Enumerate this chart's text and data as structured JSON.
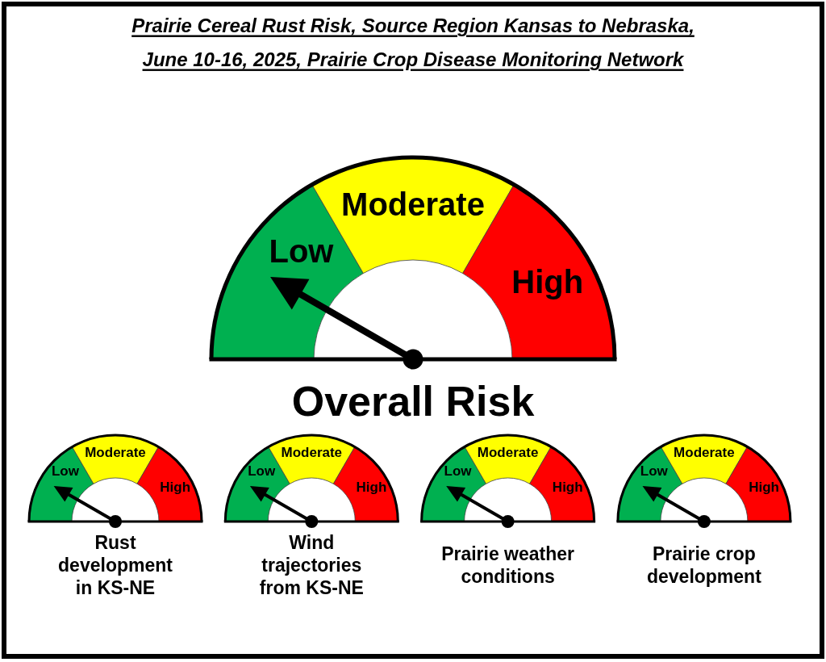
{
  "chart_data": [
    {
      "type": "donut",
      "title": "Prairie Cereal Rust Risk, Source Region Kansas to Nebraska,\nJune 10-16, 2025, Prairie Crop Disease Monitoring Network",
      "xlabel": "Overall Risk",
      "categories": [
        "Low",
        "Moderate",
        "High"
      ],
      "values": [
        33.3,
        33.4,
        33.3
      ],
      "colors": [
        "#00b050",
        "#ffff00",
        "#ff0000"
      ],
      "needle": "Low"
    },
    {
      "type": "donut",
      "xlabel": "Rust\ndevelopment\nin KS-NE",
      "categories": [
        "Low",
        "Moderate",
        "High"
      ],
      "values": [
        33.3,
        33.4,
        33.3
      ],
      "colors": [
        "#00b050",
        "#ffff00",
        "#ff0000"
      ],
      "needle": "Low"
    },
    {
      "type": "donut",
      "xlabel": "Wind\ntrajectories\nfrom KS-NE",
      "categories": [
        "Low",
        "Moderate",
        "High"
      ],
      "values": [
        33.3,
        33.4,
        33.3
      ],
      "colors": [
        "#00b050",
        "#ffff00",
        "#ff0000"
      ],
      "needle": "Low"
    },
    {
      "type": "donut",
      "xlabel": "Prairie weather\nconditions",
      "categories": [
        "Low",
        "Moderate",
        "High"
      ],
      "values": [
        33.3,
        33.4,
        33.3
      ],
      "colors": [
        "#00b050",
        "#ffff00",
        "#ff0000"
      ],
      "needle": "Low"
    },
    {
      "type": "donut",
      "xlabel": "Prairie crop\ndevelopment",
      "categories": [
        "Low",
        "Moderate",
        "High"
      ],
      "values": [
        33.3,
        33.4,
        33.3
      ],
      "colors": [
        "#00b050",
        "#ffff00",
        "#ff0000"
      ],
      "needle": "Low"
    }
  ]
}
